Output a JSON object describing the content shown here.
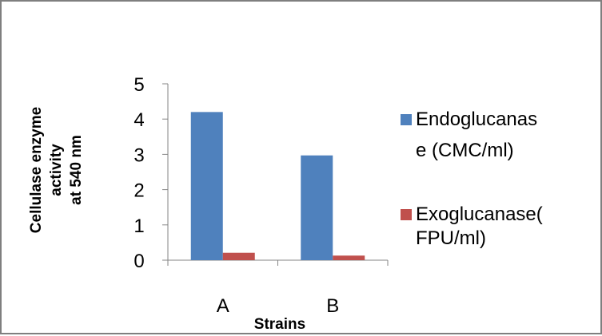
{
  "chart_data": {
    "type": "bar",
    "title": "",
    "xlabel": "Strains",
    "ylabel_lines": [
      "Cellulase enzyme",
      "activity",
      "at 540 nm"
    ],
    "categories": [
      "A",
      "B"
    ],
    "ylim": [
      0,
      5
    ],
    "yticks": [
      "0",
      "1",
      "2",
      "3",
      "4",
      "5"
    ],
    "grid": false,
    "legend_position": "right",
    "series": [
      {
        "name_lines": [
          "Endoglucanas",
          "e (CMC/ml)"
        ],
        "values": [
          4.2,
          2.97
        ],
        "color": "#4f81bd"
      },
      {
        "name_lines": [
          "Exoglucanase(",
          "FPU/ml)"
        ],
        "values": [
          0.21,
          0.13
        ],
        "color": "#c0504d"
      }
    ]
  }
}
